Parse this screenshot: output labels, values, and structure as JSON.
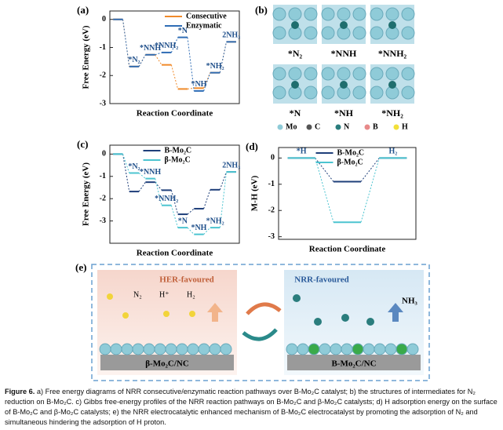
{
  "chart_data": [
    {
      "type": "step",
      "panel": "(a)",
      "ylabel": "Free Energy (eV)",
      "xlabel": "Reaction Coordinate",
      "categories": [
        null,
        "*N₂",
        "*NNH",
        "*NNH₂",
        "*N",
        "*NH",
        "*NH₂",
        "2NH₃"
      ],
      "ylim": [
        -3,
        0.3
      ],
      "yticks": [
        0,
        -1,
        -2,
        -3
      ],
      "legend": "upper right",
      "series": [
        {
          "name": "Consecutive",
          "color": "#f08a2a",
          "values": [
            0,
            -1.68,
            -1.26,
            -1.62,
            -2.48,
            -2.45,
            -1.9,
            -0.8
          ]
        },
        {
          "name": "Enzymatic",
          "color": "#2f6db5",
          "values": [
            0,
            -1.68,
            -1.26,
            -1.18,
            -0.64,
            -2.55,
            -1.9,
            -0.8
          ]
        }
      ]
    },
    {
      "type": "step",
      "panel": "(c)",
      "ylabel": "Free Energy (eV)",
      "xlabel": "Reaction Coordinate",
      "categories": [
        null,
        "*N₂",
        "*NNH",
        "*NNH₂",
        "*N",
        "*NH",
        "*NH₂",
        "2NH₃"
      ],
      "ylim": [
        -4,
        0.4
      ],
      "yticks": [
        0,
        -1,
        -2,
        -3
      ],
      "legend": "upper center",
      "series": [
        {
          "name": "B-Mo₂C",
          "color": "#1f3f7a",
          "values": [
            0,
            -1.68,
            -1.26,
            -1.62,
            -2.7,
            -2.45,
            -1.6,
            -0.8
          ]
        },
        {
          "name": "β-Mo₂C",
          "color": "#4cc4d0",
          "values": [
            0,
            -0.85,
            -1.1,
            -2.3,
            -3.3,
            -3.6,
            -3.3,
            -0.8
          ]
        }
      ]
    },
    {
      "type": "step",
      "panel": "(d)",
      "ylabel": "M-H (eV)",
      "xlabel": "Reaction Coordinate",
      "categories": [
        "*H",
        null,
        "H₂"
      ],
      "ylim": [
        -3.1,
        0.4
      ],
      "yticks": [
        0,
        -1,
        -2,
        -3
      ],
      "legend": "upper center",
      "series": [
        {
          "name": "B-Mo₂C",
          "color": "#1f3f7a",
          "values": [
            0,
            -0.9,
            0
          ]
        },
        {
          "name": "β-Mo₂C",
          "color": "#4cc4d0",
          "values": [
            0,
            -2.45,
            0
          ]
        }
      ]
    }
  ],
  "panel_b": {
    "panel": "(b)",
    "structures": [
      "*N₂",
      "*NNH",
      "*NNH₂",
      "*N",
      "*NH",
      "*NH₂"
    ],
    "legend": [
      "Mo",
      "C",
      "N",
      "B",
      "H"
    ]
  },
  "panel_e": {
    "panel": "(e)",
    "left_title": "HER-favoured",
    "right_title": "NRR-favoured",
    "species": [
      "N₂",
      "H⁺",
      "H₂"
    ],
    "product": "NH₃",
    "left_substrate": "β-Mo₂C/NC",
    "right_substrate": "B-Mo₂C/NC"
  },
  "caption": {
    "label": "Figure 6.",
    "text": "a) Free energy diagrams of NRR consecutive/enzymatic reaction pathways over B-Mo₂C catalyst; b) the structures of intermediates for N₂ reduction on B-Mo₂C. c) Gibbs free-energy profiles of the NRR reaction pathways on B-Mo₂C and β-Mo₂C catalysts; d) H adsorption energy on the surface of B-Mo₂C and β-Mo₂C catalysts; e) the NRR electrocatalytic enhanced mechanism of B-Mo₂C electrocatalyst by promoting the adsorption of N₂ and simultaneous hindering the adsorption of H proton."
  }
}
